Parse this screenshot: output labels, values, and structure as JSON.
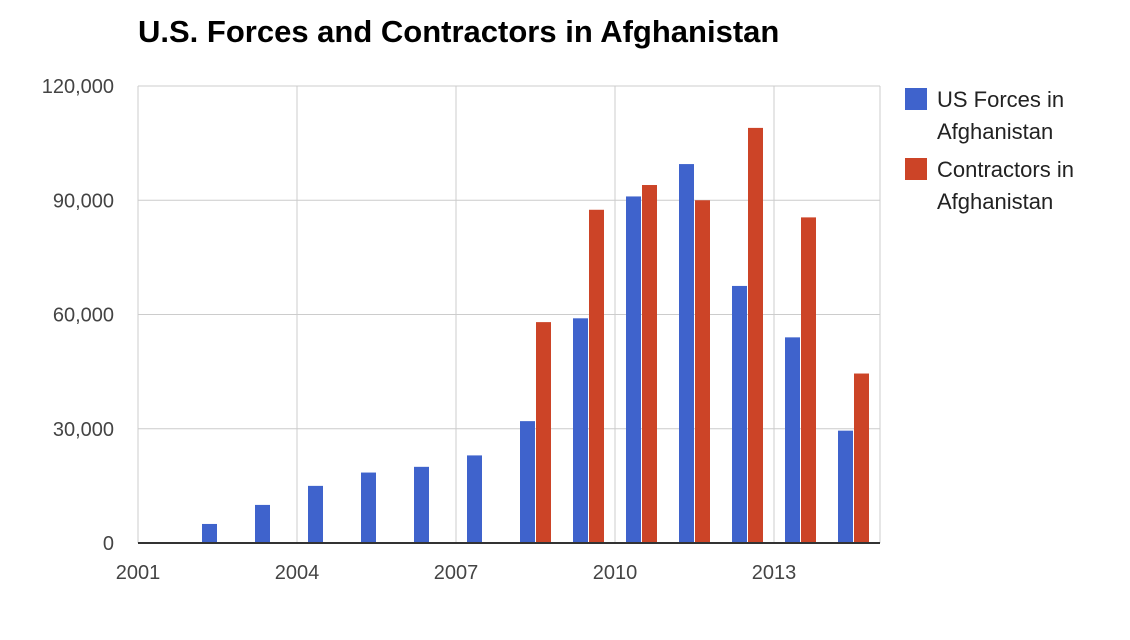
{
  "chart_data": {
    "type": "bar",
    "title": "U.S. Forces and Contractors in Afghanistan",
    "xlabel": "",
    "ylabel": "",
    "x": [
      2001,
      2002,
      2003,
      2004,
      2005,
      2006,
      2007,
      2008,
      2009,
      2010,
      2011,
      2012,
      2013,
      2014
    ],
    "x_ticks": [
      "2001",
      "2004",
      "2007",
      "2010",
      "2013"
    ],
    "ylim": [
      0,
      120000
    ],
    "y_ticks": [
      "0",
      "30,000",
      "60,000",
      "90,000",
      "120,000"
    ],
    "grid": true,
    "legend_position": "right",
    "series": [
      {
        "name": "US Forces in Afghanistan",
        "color": "#3f63cc",
        "values": [
          0,
          5000,
          10000,
          15000,
          18500,
          20000,
          23000,
          32000,
          59000,
          91000,
          99500,
          67500,
          54000,
          29500
        ]
      },
      {
        "name": "Contractors in Afghanistan",
        "color": "#cc4427",
        "values": [
          0,
          0,
          0,
          0,
          0,
          0,
          0,
          58000,
          87500,
          94000,
          90000,
          109000,
          85500,
          44500
        ]
      }
    ]
  }
}
